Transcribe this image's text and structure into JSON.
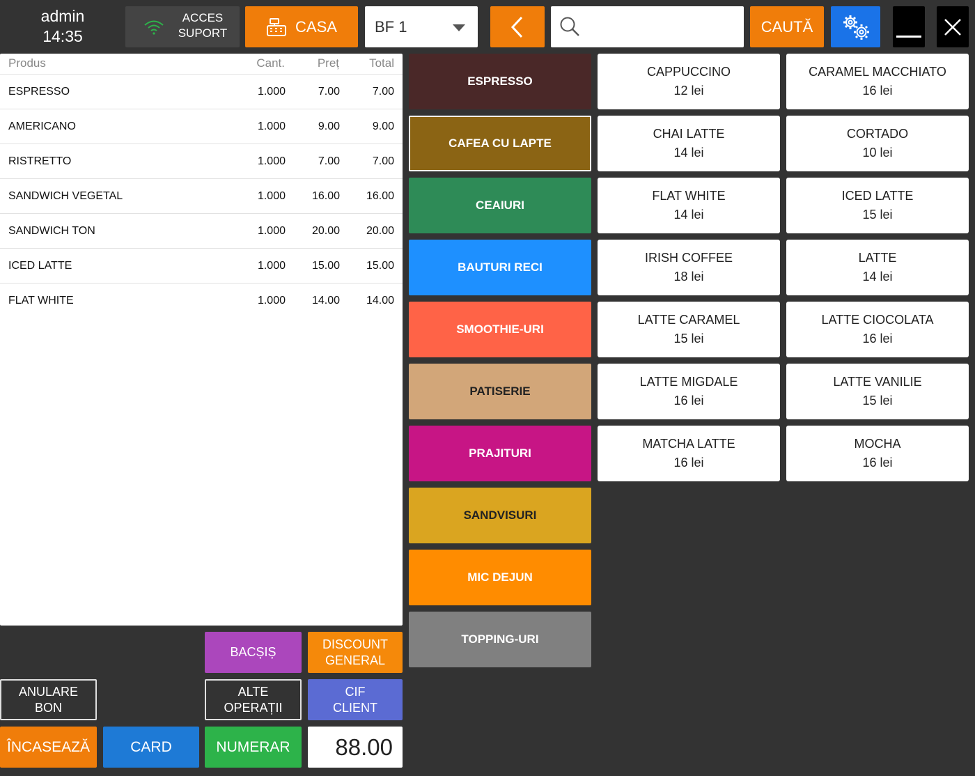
{
  "header": {
    "username": "admin",
    "time": "14:35",
    "support_line1": "ACCES",
    "support_line2": "SUPORT",
    "casa_label": "CASA",
    "receipt_select": "BF 1",
    "search_placeholder": "",
    "search_value": "",
    "search_label": "CAUTĂ"
  },
  "receipt": {
    "columns": {
      "product": "Produs",
      "qty": "Cant.",
      "price": "Preț",
      "total": "Total"
    },
    "items": [
      {
        "name": "ESPRESSO",
        "qty": "1.000",
        "price": "7.00",
        "total": "7.00"
      },
      {
        "name": "AMERICANO",
        "qty": "1.000",
        "price": "9.00",
        "total": "9.00"
      },
      {
        "name": "RISTRETTO",
        "qty": "1.000",
        "price": "7.00",
        "total": "7.00"
      },
      {
        "name": "SANDWICH VEGETAL",
        "qty": "1.000",
        "price": "16.00",
        "total": "16.00"
      },
      {
        "name": "SANDWICH TON",
        "qty": "1.000",
        "price": "20.00",
        "total": "20.00"
      },
      {
        "name": "ICED LATTE",
        "qty": "1.000",
        "price": "15.00",
        "total": "15.00"
      },
      {
        "name": "FLAT WHITE",
        "qty": "1.000",
        "price": "14.00",
        "total": "14.00"
      }
    ],
    "grand_total": "88.00"
  },
  "actions": {
    "bacsis": "BACȘIȘ",
    "discount_line1": "DISCOUNT",
    "discount_line2": "GENERAL",
    "anulare_line1": "ANULARE",
    "anulare_line2": "BON",
    "alte_line1": "ALTE",
    "alte_line2": "OPERAȚII",
    "cif_line1": "CIF",
    "cif_line2": "CLIENT",
    "incaseaza": "ÎNCASEAZĂ",
    "card": "CARD",
    "numerar": "NUMERAR"
  },
  "categories": [
    {
      "label": "ESPRESSO",
      "color": "#4a2828",
      "selected": false
    },
    {
      "label": "CAFEA CU LAPTE",
      "color": "#8b6414",
      "selected": true
    },
    {
      "label": "CEAIURI",
      "color": "#2e8b57",
      "selected": false
    },
    {
      "label": "BAUTURI RECI",
      "color": "#1e90ff",
      "selected": false
    },
    {
      "label": "SMOOTHIE-URI",
      "color": "#ff6347",
      "selected": false
    },
    {
      "label": "PATISERIE",
      "color": "#d2a679",
      "selected": false,
      "text_color": "#222222"
    },
    {
      "label": "PRAJITURI",
      "color": "#c71585",
      "selected": false
    },
    {
      "label": "SANDVISURI",
      "color": "#daa520",
      "selected": false,
      "text_color": "#222222"
    },
    {
      "label": "MIC DEJUN",
      "color": "#ff8c00",
      "selected": false
    },
    {
      "label": "TOPPING-URI",
      "color": "#808080",
      "selected": false
    }
  ],
  "products": [
    {
      "name": "CAPPUCCINO",
      "price": "12 lei"
    },
    {
      "name": "CARAMEL MACCHIATO",
      "price": "16 lei"
    },
    {
      "name": "CHAI LATTE",
      "price": "14 lei"
    },
    {
      "name": "CORTADO",
      "price": "10 lei"
    },
    {
      "name": "FLAT WHITE",
      "price": "14 lei"
    },
    {
      "name": "ICED LATTE",
      "price": "15 lei"
    },
    {
      "name": "IRISH COFFEE",
      "price": "18 lei"
    },
    {
      "name": "LATTE",
      "price": "14 lei"
    },
    {
      "name": "LATTE CARAMEL",
      "price": "15 lei"
    },
    {
      "name": "LATTE CIOCOLATA",
      "price": "16 lei"
    },
    {
      "name": "LATTE MIGDALE",
      "price": "16 lei"
    },
    {
      "name": "LATTE VANILIE",
      "price": "15 lei"
    },
    {
      "name": "MATCHA LATTE",
      "price": "16 lei"
    },
    {
      "name": "MOCHA",
      "price": "16 lei"
    }
  ],
  "icons": {
    "support": "wifi-icon",
    "casa": "cash-register-icon",
    "select": "chevron-down-icon",
    "back": "chevron-left-icon",
    "search": "search-icon",
    "settings": "gear-icon",
    "minimize": "minimize-icon",
    "close": "close-icon"
  }
}
